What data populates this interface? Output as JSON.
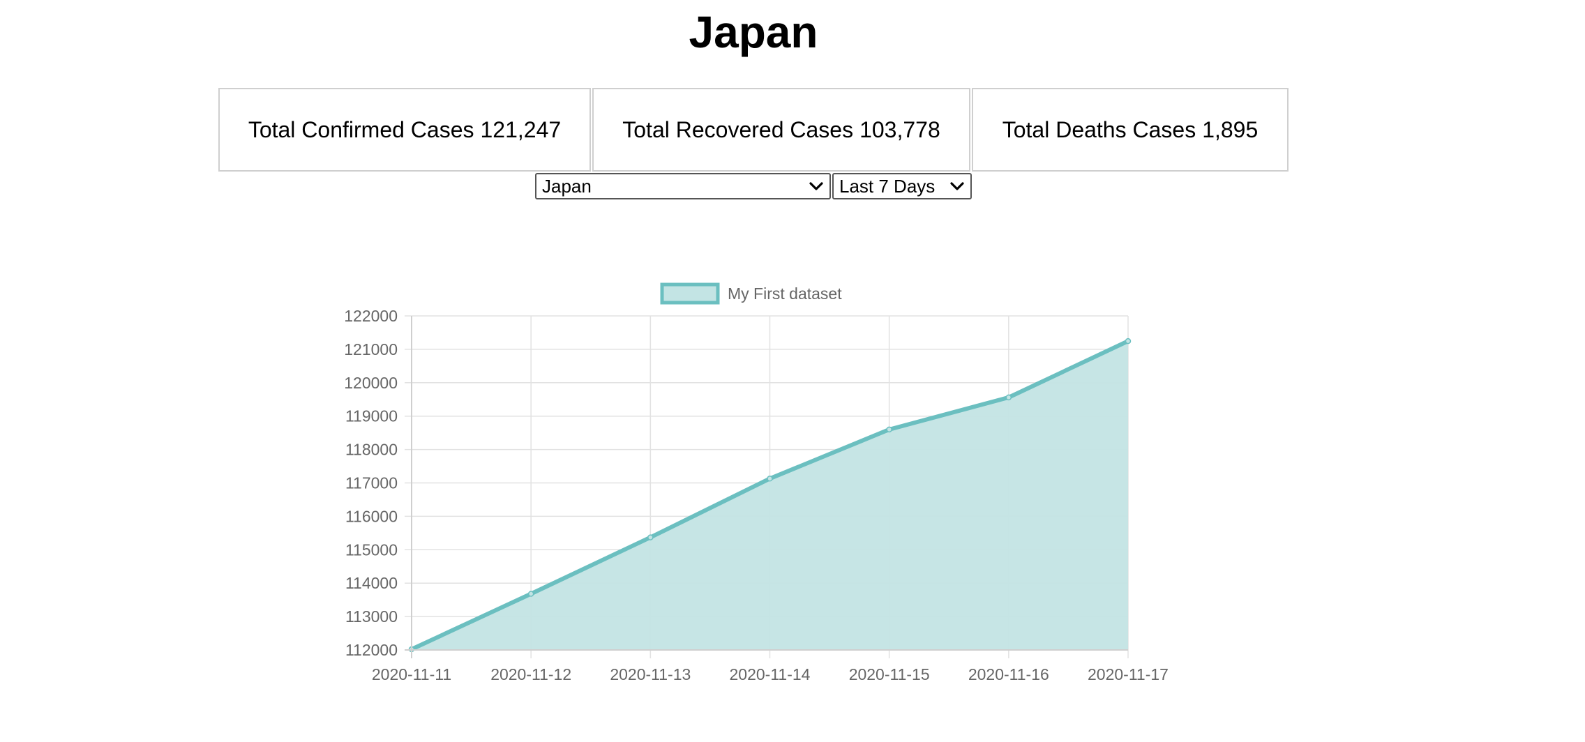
{
  "page": {
    "title": "Japan"
  },
  "stats": {
    "confirmed": {
      "label": "Total Confirmed Cases",
      "value": "121,247"
    },
    "recovered": {
      "label": "Total Recovered Cases",
      "value": "103,778"
    },
    "deaths": {
      "label": "Total Deaths Cases",
      "value": "1,895"
    }
  },
  "controls": {
    "country_selected": "Japan",
    "range_selected": "Last 7 Days"
  },
  "colors": {
    "line": "#6bbfc0",
    "fill": "#c3e4e4",
    "grid": "#e2e2e2",
    "axis_text": "#666666"
  },
  "chart_data": {
    "type": "area",
    "legend_placement": "top",
    "grid": true,
    "x": [
      "2020-11-11",
      "2020-11-12",
      "2020-11-13",
      "2020-11-14",
      "2020-11-15",
      "2020-11-16",
      "2020-11-17"
    ],
    "series": [
      {
        "name": "My First dataset",
        "values": [
          112020,
          113680,
          115370,
          117130,
          118600,
          119560,
          121247
        ]
      }
    ],
    "ylim": [
      112000,
      122000
    ],
    "y_ticks": [
      122000,
      121000,
      120000,
      119000,
      118000,
      117000,
      116000,
      115000,
      114000,
      113000,
      112000
    ]
  }
}
